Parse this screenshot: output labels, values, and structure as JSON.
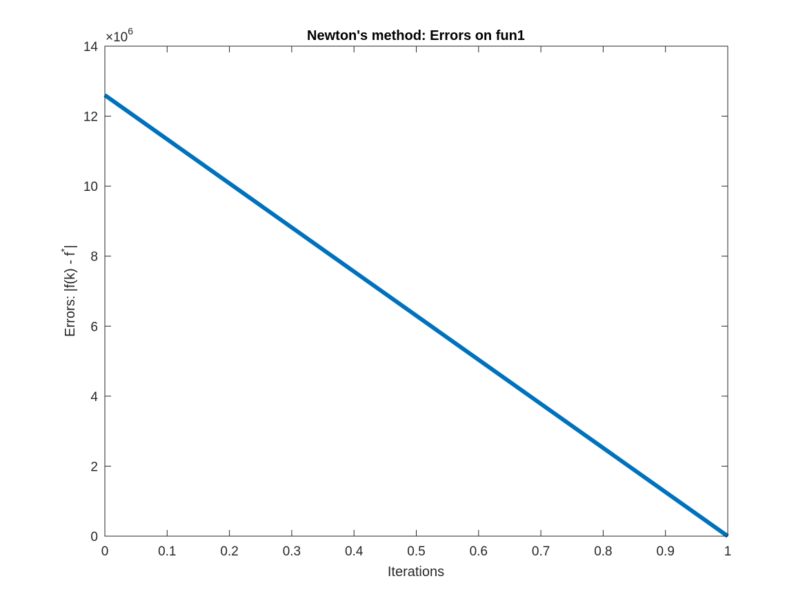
{
  "chart_data": {
    "type": "line",
    "title": "Newton's method: Errors on fun1",
    "xlabel": "Iterations",
    "ylabel": {
      "main": "Errors: |f(k) - f",
      "superscript": "*",
      "closing": "|"
    },
    "xlim": [
      0,
      1
    ],
    "ylim": [
      0,
      14000000
    ],
    "x_ticks": [
      0,
      0.1,
      0.2,
      0.3,
      0.4,
      0.5,
      0.6,
      0.7,
      0.8,
      0.9,
      1
    ],
    "x_tick_labels": [
      "0",
      "0.1",
      "0.2",
      "0.3",
      "0.4",
      "0.5",
      "0.6",
      "0.7",
      "0.8",
      "0.9",
      "1"
    ],
    "y_ticks": [
      0,
      2000000,
      4000000,
      6000000,
      8000000,
      10000000,
      12000000,
      14000000
    ],
    "y_tick_labels": [
      "0",
      "2",
      "4",
      "6",
      "8",
      "10",
      "12",
      "14"
    ],
    "y_exponent": {
      "base": "×10",
      "power": "6"
    },
    "grid": false,
    "box": true,
    "series": [
      {
        "x": [
          0,
          1
        ],
        "y": [
          12600000,
          0
        ],
        "color": "#0072BD"
      }
    ]
  }
}
